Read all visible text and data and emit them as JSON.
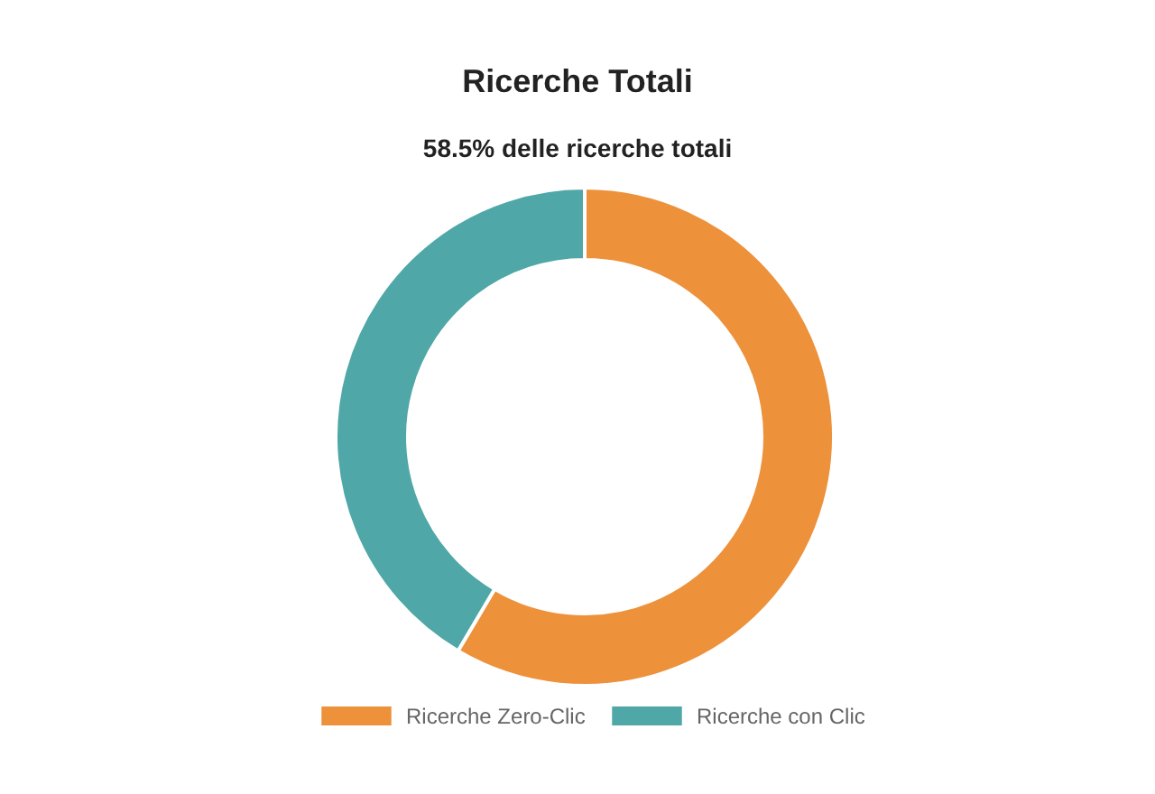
{
  "chart_data": {
    "type": "donut",
    "title": "Ricerche Totali",
    "subtitle": "58.5% delle ricerche totali",
    "categories": [
      "Ricerche Zero-Clic",
      "Ricerche con Clic"
    ],
    "values": [
      58.5,
      41.5
    ],
    "colors": [
      "#ed913b",
      "#4fa7a7"
    ],
    "legend": "bottom"
  }
}
